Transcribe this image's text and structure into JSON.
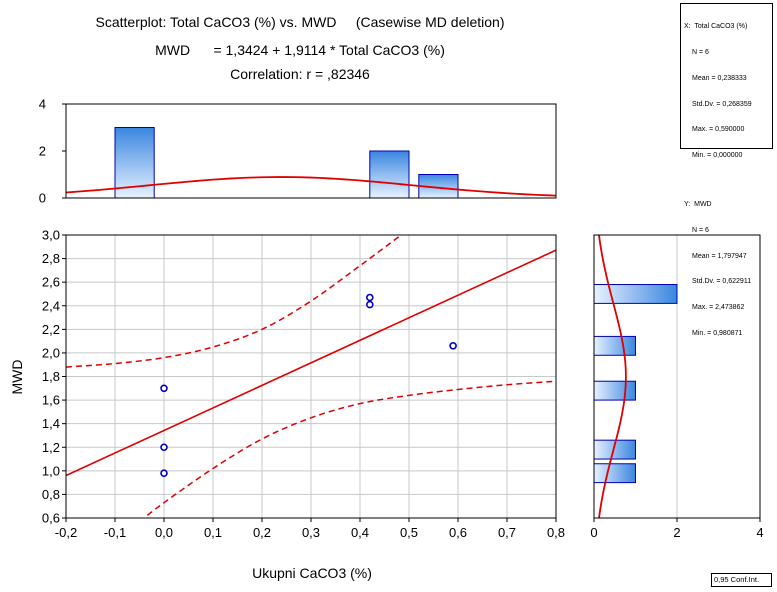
{
  "chart_data": {
    "type": "scatter",
    "title": "Scatterplot: Total CaCO3 (%) vs. MWD     (Casewise MD deletion)",
    "equation": "MWD      = 1,3424 + 1,9114 * Total CaCO3 (%)",
    "correlation": "Correlation: r = ,82346",
    "xlabel": "Ukupni  CaCO3 (%)",
    "ylabel": "MWD",
    "xlim": [
      -0.2,
      0.8
    ],
    "ylim": [
      0.6,
      3.0
    ],
    "x_ticks": [
      "-0,2",
      "-0,1",
      "0,0",
      "0,1",
      "0,2",
      "0,3",
      "0,4",
      "0,5",
      "0,6",
      "0,7",
      "0,8"
    ],
    "y_ticks": [
      "0,6",
      "0,8",
      "1,0",
      "1,2",
      "1,4",
      "1,6",
      "1,8",
      "2,0",
      "2,2",
      "2,4",
      "2,6",
      "2,8",
      "3,0"
    ],
    "points": [
      {
        "x": 0.0,
        "y": 0.98
      },
      {
        "x": 0.0,
        "y": 1.2
      },
      {
        "x": 0.0,
        "y": 1.7
      },
      {
        "x": 0.42,
        "y": 2.41
      },
      {
        "x": 0.42,
        "y": 2.47
      },
      {
        "x": 0.59,
        "y": 2.06
      }
    ],
    "regression": {
      "intercept": 1.3424,
      "slope": 1.9114
    },
    "confidence_band": {
      "upper": [
        [
          -0.2,
          1.88
        ],
        [
          -0.1,
          1.91
        ],
        [
          0.0,
          1.96
        ],
        [
          0.1,
          2.05
        ],
        [
          0.2,
          2.2
        ],
        [
          0.3,
          2.44
        ],
        [
          0.4,
          2.74
        ],
        [
          0.5,
          3.05
        ]
      ],
      "lower": [
        [
          -0.05,
          0.57
        ],
        [
          0.0,
          0.73
        ],
        [
          0.1,
          1.02
        ],
        [
          0.2,
          1.27
        ],
        [
          0.3,
          1.45
        ],
        [
          0.4,
          1.57
        ],
        [
          0.5,
          1.64
        ],
        [
          0.6,
          1.69
        ],
        [
          0.7,
          1.73
        ],
        [
          0.8,
          1.76
        ]
      ]
    },
    "x_histogram": {
      "ylim": [
        0,
        4
      ],
      "y_ticks": [
        "0",
        "2",
        "4"
      ],
      "bins": [
        {
          "from": -0.1,
          "to": -0.02,
          "count": 3
        },
        {
          "from": 0.42,
          "to": 0.5,
          "count": 2
        },
        {
          "from": 0.52,
          "to": 0.6,
          "count": 1
        }
      ]
    },
    "y_histogram": {
      "xlim": [
        0,
        4
      ],
      "x_ticks": [
        "0",
        "2",
        "4"
      ],
      "bins": [
        {
          "from": 0.9,
          "to": 1.06,
          "count": 1
        },
        {
          "from": 1.1,
          "to": 1.26,
          "count": 1
        },
        {
          "from": 1.6,
          "to": 1.76,
          "count": 1
        },
        {
          "from": 1.98,
          "to": 2.14,
          "count": 1
        },
        {
          "from": 2.42,
          "to": 2.58,
          "count": 2
        }
      ]
    }
  },
  "stats": {
    "x_header": "X:  Total CaCO3 (%)",
    "x_lines": [
      "N = 6",
      "Mean = 0,238333",
      "Std.Dv. = 0,268359",
      "Max. = 0,590000",
      "Min. = 0,000000"
    ],
    "y_header": "Y:  MWD",
    "y_lines": [
      "N = 6",
      "Mean = 1,797947",
      "Std.Dv. = 0,622911",
      "Max. = 2,473862",
      "Min. = 0,980871"
    ]
  },
  "conf_label": "0,95 Conf.Int.",
  "colors": {
    "line": "#e00000",
    "points": "#0000cc",
    "bar_fill_dark": "#3a86e0",
    "bar_fill_light": "#e8f2ff",
    "bar_stroke": "#0000b0",
    "grid": "#c8c8c8"
  }
}
